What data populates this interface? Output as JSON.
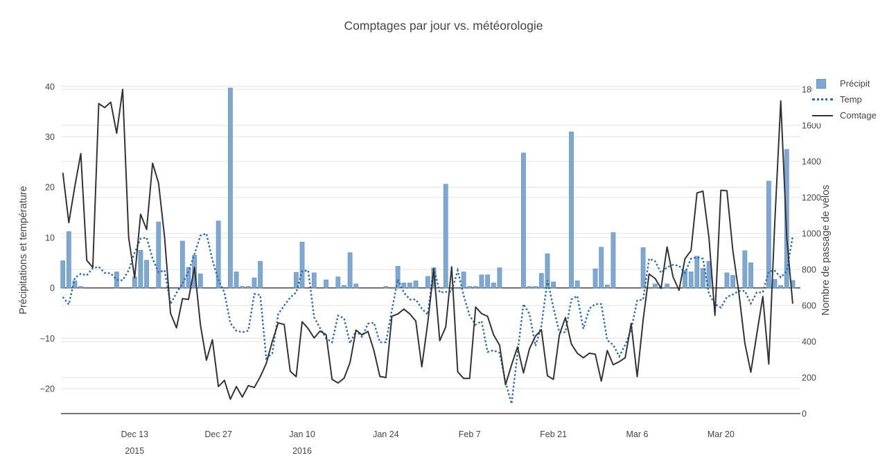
{
  "chart_data": {
    "type": "bar+line dual-axis time series",
    "title": "Comptages par jour vs. météorologie",
    "x": {
      "start_date": "2015-12-01",
      "end_date": "2016-04-01",
      "ticks": [
        {
          "index": 12,
          "label": "Dec 13",
          "year": "2015"
        },
        {
          "index": 26,
          "label": "Dec 27",
          "year": ""
        },
        {
          "index": 40,
          "label": "Jan 10",
          "year": "2016"
        },
        {
          "index": 54,
          "label": "Jan 24",
          "year": ""
        },
        {
          "index": 68,
          "label": "Feb 7",
          "year": ""
        },
        {
          "index": 82,
          "label": "Feb 21",
          "year": ""
        },
        {
          "index": 96,
          "label": "Mar 6",
          "year": ""
        },
        {
          "index": 110,
          "label": "Mar 20",
          "year": ""
        }
      ]
    },
    "yaxis_left": {
      "title": "Précipitations et température",
      "range": [
        -25,
        40.2
      ],
      "ticks": [
        -20,
        -10,
        0,
        10,
        20,
        30,
        40
      ],
      "grid": true
    },
    "yaxis_right": {
      "title": "Nombre de passage de vélos",
      "range": [
        0,
        1815
      ],
      "ticks": [
        0,
        200,
        400,
        600,
        800,
        1000,
        1200,
        1400,
        1600,
        1800
      ],
      "grid": true
    },
    "legend": {
      "position": "top-right",
      "items": [
        {
          "label": "Précipit",
          "swatch": "square",
          "color": "#7EA8D0"
        },
        {
          "label": "Temp",
          "swatch": "dotted-line",
          "color": "#2A6AAD"
        },
        {
          "label": "Comtage",
          "swatch": "solid-line",
          "color": "#333333"
        }
      ]
    },
    "series": [
      {
        "name": "Précipit",
        "type": "bar",
        "axis": "left",
        "color": "#7EA8D0",
        "values": [
          5.4,
          11.2,
          1.4,
          0.3,
          0,
          0,
          0,
          0,
          0,
          3.2,
          0,
          0,
          2.2,
          7.5,
          5.5,
          0,
          13.1,
          0,
          0,
          0,
          9.3,
          4.1,
          6.5,
          2.8,
          0,
          0,
          13.3,
          0,
          39.7,
          3.2,
          0.3,
          0.3,
          2,
          5.3,
          0,
          0,
          0,
          0,
          0,
          3.1,
          9.1,
          0,
          3,
          0,
          1.6,
          0,
          2.2,
          0.5,
          7,
          0.8,
          0,
          0,
          0,
          0,
          0.3,
          0,
          4.3,
          1,
          1,
          1.4,
          0,
          2.3,
          4,
          0,
          20.6,
          0,
          0,
          3.2,
          0.3,
          0.3,
          2.6,
          2.6,
          1,
          4,
          0,
          0,
          0,
          26.8,
          0.3,
          0.3,
          2.9,
          6.8,
          1.2,
          0,
          0,
          31,
          1.4,
          0,
          0,
          3.8,
          8.1,
          0.6,
          11,
          0,
          0,
          0,
          0,
          8,
          0,
          0.8,
          0,
          0.8,
          0,
          0,
          3.5,
          3.2,
          6.3,
          3.9,
          5.3,
          0,
          0,
          3,
          2.5,
          0,
          7.4,
          5,
          0,
          0,
          21.2,
          1.7,
          0.5,
          27.5,
          1.5
        ]
      },
      {
        "name": "Temp",
        "type": "line",
        "dash": "dot",
        "axis": "left",
        "color": "#2A6AAD",
        "values": [
          -1.8,
          -3.3,
          2,
          2.8,
          2.5,
          3.9,
          4.2,
          3,
          2.9,
          1.6,
          1.5,
          3.5,
          7,
          9.8,
          10,
          5.8,
          3.1,
          3.5,
          -3.2,
          -1,
          0.9,
          3.2,
          6.7,
          10.4,
          10.8,
          5.5,
          1.6,
          -0.9,
          -7,
          -8.5,
          -8.8,
          -8.5,
          -1.2,
          -1.4,
          -14,
          -13,
          -5.2,
          -3.5,
          -1.9,
          -0.9,
          3.3,
          3.5,
          -5.8,
          -8,
          -10,
          -10.8,
          -5.5,
          -6,
          -11,
          -8.5,
          -9.7,
          -7.1,
          -6.9,
          -10.8,
          -10.8,
          -4.4,
          1.7,
          -0.9,
          -2.3,
          -2.3,
          -4.1,
          -5.3,
          4.1,
          -0.9,
          -0.8,
          -0.7,
          3.5,
          -1.5,
          -5.5,
          -7.3,
          -6.6,
          -12.7,
          -12.4,
          -12.9,
          -18.7,
          -23,
          -13,
          -3.2,
          -5.2,
          -11.5,
          -7.5,
          1.5,
          -3.9,
          -8.8,
          -8.8,
          -2.3,
          -1.6,
          -8.1,
          -4.1,
          -3.2,
          -3.2,
          -10.4,
          -11.3,
          -13.6,
          -11.3,
          -8.3,
          -2.5,
          -2.3,
          5.8,
          5.3,
          3,
          4.1,
          4.6,
          4.4,
          3,
          5.8,
          6.1,
          5.8,
          -1.2,
          -3.2,
          -3.9,
          -1.8,
          -1.3,
          -0.6,
          -0.6,
          -3.1,
          -0.9,
          -0.9,
          3.3,
          3.4,
          2.1,
          3.3,
          10.2
        ]
      },
      {
        "name": "Comtage",
        "type": "line",
        "dash": "solid",
        "axis": "right",
        "color": "#333333",
        "values": [
          1337,
          1060,
          1262,
          1444,
          851,
          811,
          1721,
          1699,
          1729,
          1556,
          1800,
          976,
          754,
          1107,
          1022,
          1390,
          1280,
          979,
          556,
          476,
          638,
          634,
          812,
          490,
          296,
          410,
          150,
          185,
          80,
          150,
          92,
          155,
          145,
          205,
          278,
          400,
          503,
          495,
          235,
          205,
          510,
          472,
          420,
          458,
          438,
          190,
          170,
          196,
          283,
          463,
          437,
          456,
          350,
          206,
          200,
          540,
          553,
          580,
          553,
          514,
          260,
          505,
          800,
          405,
          480,
          815,
          232,
          195,
          195,
          591,
          555,
          540,
          437,
          380,
          160,
          270,
          370,
          226,
          360,
          430,
          465,
          210,
          190,
          437,
          533,
          386,
          335,
          310,
          335,
          330,
          180,
          350,
          271,
          288,
          310,
          500,
          205,
          520,
          775,
          750,
          695,
          925,
          758,
          685,
          860,
          905,
          1225,
          1235,
          976,
          545,
          1240,
          1237,
          903,
          672,
          390,
          230,
          441,
          650,
          275,
          1056,
          1736,
          980,
          610
        ]
      }
    ],
    "colors": {
      "grid": "#e8e8e8",
      "zero_line": "#222222",
      "axis_line": "#222222",
      "text": "#444444",
      "background": "#ffffff"
    }
  }
}
